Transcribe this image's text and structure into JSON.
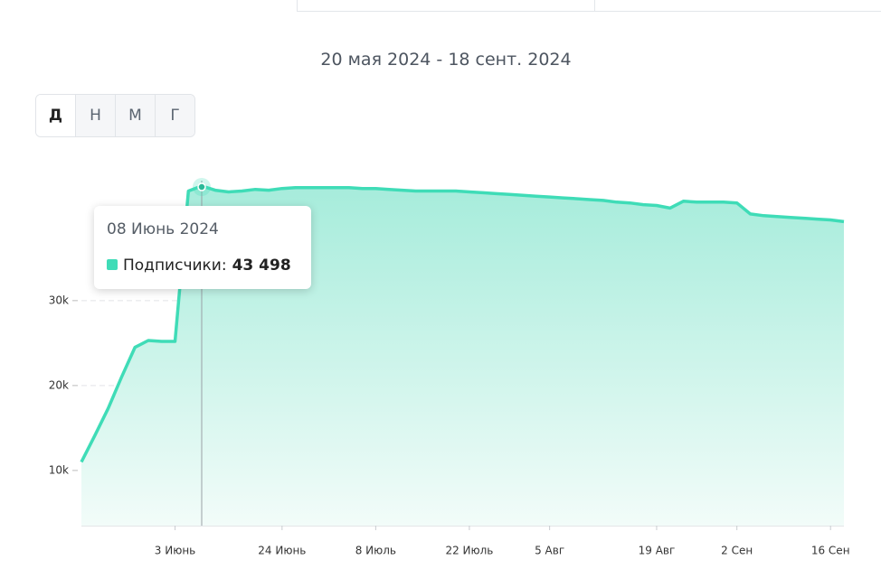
{
  "chart_data": {
    "type": "area",
    "title": "20 мая 2024 - 18 сент. 2024",
    "period_buttons": [
      "Д",
      "Н",
      "М",
      "Г"
    ],
    "categories": [
      null,
      null,
      null,
      null,
      null,
      null,
      null,
      "3 Июнь",
      null,
      null,
      null,
      null,
      null,
      null,
      null,
      "24 Июнь",
      null,
      null,
      null,
      null,
      null,
      null,
      "8 Июль",
      null,
      null,
      null,
      null,
      null,
      null,
      "22 Июль",
      null,
      null,
      null,
      null,
      null,
      "5 Авг",
      null,
      null,
      null,
      null,
      null,
      null,
      null,
      "19 Авг",
      null,
      null,
      null,
      null,
      null,
      "2 Сен",
      null,
      null,
      null,
      null,
      null,
      null,
      "16 Сен",
      null
    ],
    "series": [
      {
        "name": "Подписчики",
        "color": "#3fdcb7",
        "values": [
          11000,
          14100,
          17300,
          21000,
          24500,
          25300,
          25200,
          25200,
          42900,
          43498,
          43000,
          42800,
          42900,
          43100,
          43000,
          43200,
          43300,
          43300,
          43300,
          43300,
          43300,
          43200,
          43200,
          43100,
          43000,
          42900,
          42900,
          42900,
          42900,
          42800,
          42700,
          42600,
          42500,
          42400,
          42300,
          42200,
          42100,
          42000,
          41900,
          41800,
          41600,
          41500,
          41300,
          41200,
          40900,
          41700,
          41600,
          41600,
          41600,
          41500,
          40200,
          40000,
          39900,
          39800,
          39700,
          39600,
          39500,
          39300
        ]
      }
    ],
    "ylim": [
      3500,
      47000
    ],
    "yticks": [
      {
        "value": 10000,
        "label": "10k"
      },
      {
        "value": 20000,
        "label": "20k"
      },
      {
        "value": 30000,
        "label": "30k"
      }
    ],
    "grid": true,
    "tooltip": {
      "title": "08 Июнь 2024",
      "label": "Подписчики:",
      "value": "43 498"
    }
  }
}
